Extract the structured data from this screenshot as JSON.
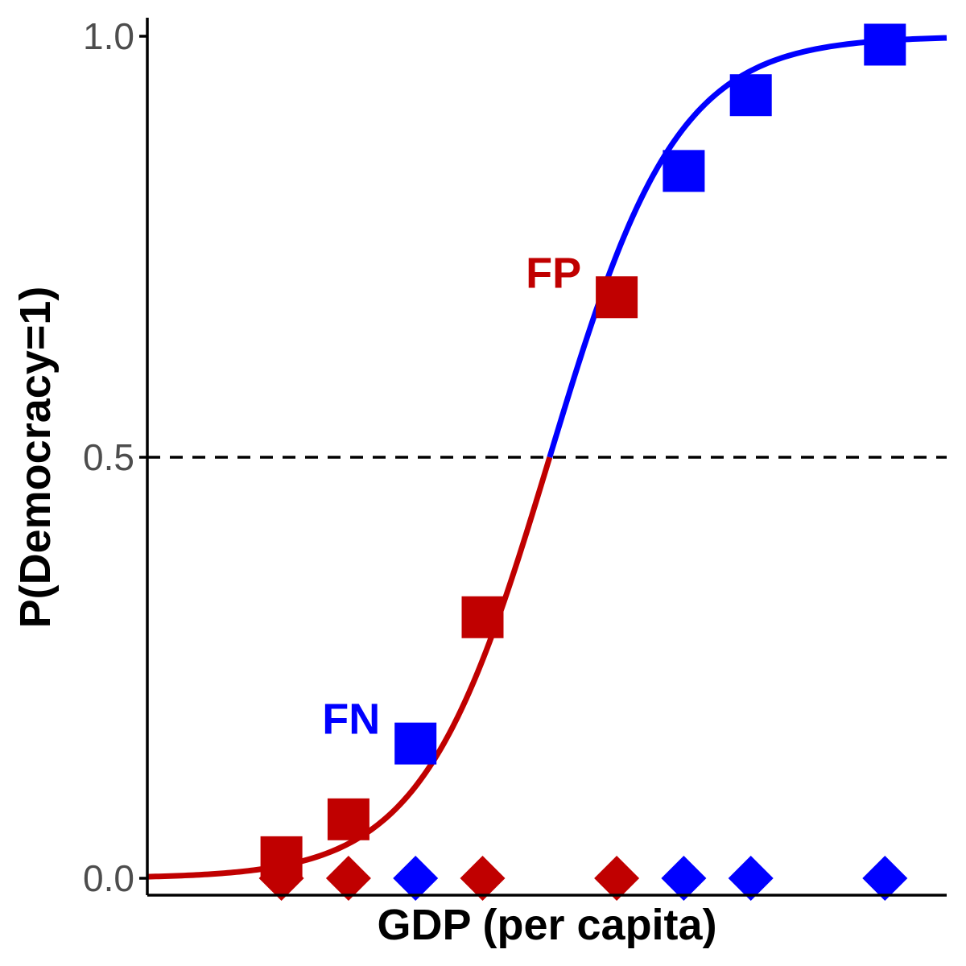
{
  "chart_data": {
    "type": "scatter",
    "title": "",
    "xlabel": "GDP (per capita)",
    "ylabel": "P(Democracy=1)",
    "x_ticks_shown": false,
    "xlim": [
      0,
      12
    ],
    "ylim": [
      0,
      1
    ],
    "y_ticks": [
      {
        "value": 0.0,
        "label": "0.0"
      },
      {
        "value": 0.5,
        "label": "0.5"
      },
      {
        "value": 1.0,
        "label": "1.0"
      }
    ],
    "threshold": 0.5,
    "curve_logistic": {
      "midpoint": 6.0,
      "slope": 1.05
    },
    "points": [
      {
        "x": 2.0,
        "predicted": 0.025,
        "actual": 0,
        "predicted_class": 0
      },
      {
        "x": 3.0,
        "predicted": 0.07,
        "actual": 0,
        "predicted_class": 0
      },
      {
        "x": 4.0,
        "predicted": 0.16,
        "actual": 1,
        "predicted_class": 0
      },
      {
        "x": 5.0,
        "predicted": 0.31,
        "actual": 0,
        "predicted_class": 0
      },
      {
        "x": 7.0,
        "predicted": 0.69,
        "actual": 0,
        "predicted_class": 1
      },
      {
        "x": 8.0,
        "predicted": 0.84,
        "actual": 1,
        "predicted_class": 1
      },
      {
        "x": 9.0,
        "predicted": 0.93,
        "actual": 1,
        "predicted_class": 1
      },
      {
        "x": 11.0,
        "predicted": 0.99,
        "actual": 1,
        "predicted_class": 1
      }
    ],
    "annotations": [
      {
        "text": "FN",
        "x": 4.0,
        "y": 0.16,
        "color": "#0000ff"
      },
      {
        "text": "FP",
        "x": 7.0,
        "y": 0.69,
        "color": "#c00000"
      }
    ],
    "colors": {
      "class0": "#c00000",
      "class1": "#0000ff",
      "threshold_line": "#000000",
      "axis": "#000000"
    },
    "grid": false,
    "legend": "none"
  }
}
